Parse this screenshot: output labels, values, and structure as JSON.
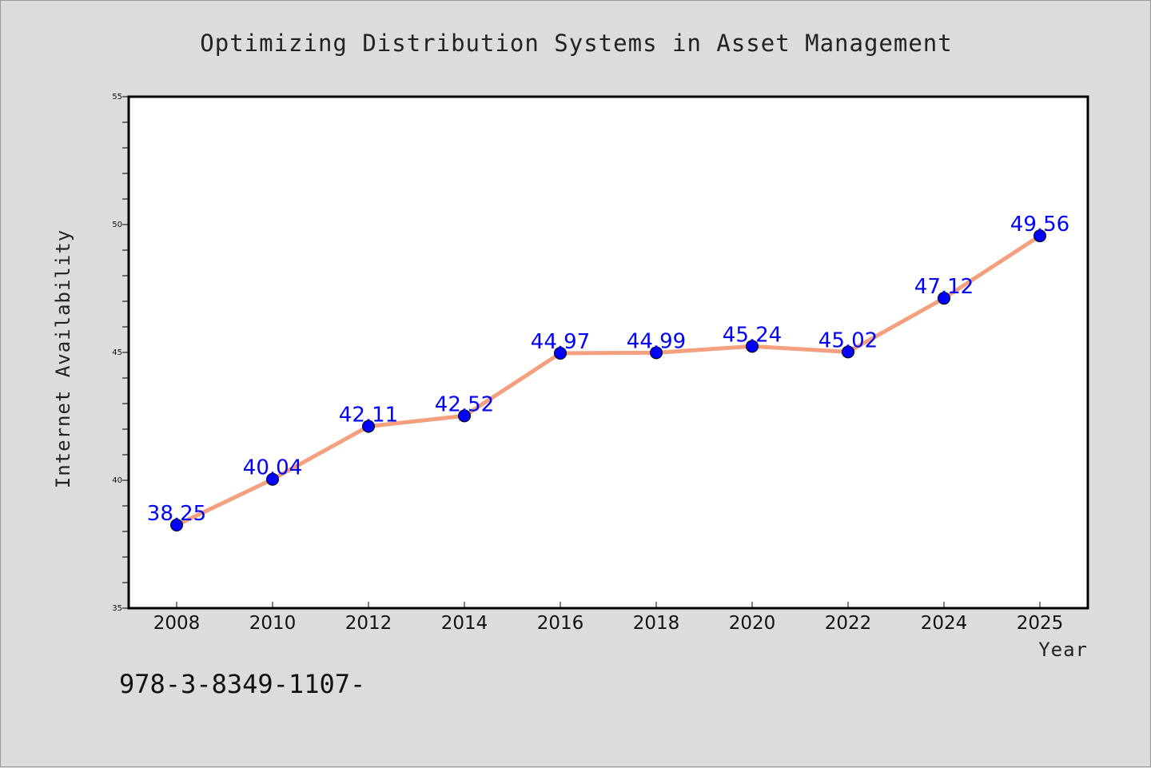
{
  "chart_data": {
    "type": "line",
    "title": "Optimizing Distribution Systems in Asset Management",
    "xlabel": "Year",
    "ylabel": "Internet Availability",
    "categories": [
      "2008",
      "2010",
      "2012",
      "2014",
      "2016",
      "2018",
      "2020",
      "2022",
      "2024",
      "2025"
    ],
    "series": [
      {
        "values": [
          38.25,
          40.04,
          42.11,
          42.52,
          44.97,
          44.99,
          45.24,
          45.02,
          47.12,
          49.56
        ],
        "labels": [
          "38.25",
          "40.04",
          "42.11",
          "42.52",
          "44.97",
          "44.99",
          "45.24",
          "45.02",
          "47.12",
          "49.56"
        ]
      }
    ],
    "ylim": [
      35,
      55
    ],
    "yticks_major": [
      "35",
      "40",
      "45",
      "50",
      "55"
    ],
    "ytick_minor_step": 1,
    "grid": false,
    "colors": {
      "line": "#f4a07e",
      "marker": "#0000ff",
      "data_label": "#0000ff",
      "background": "#dcdcdc",
      "plot_background": "#ffffff"
    }
  },
  "footer": {
    "text": "978-3-8349-1107-"
  }
}
